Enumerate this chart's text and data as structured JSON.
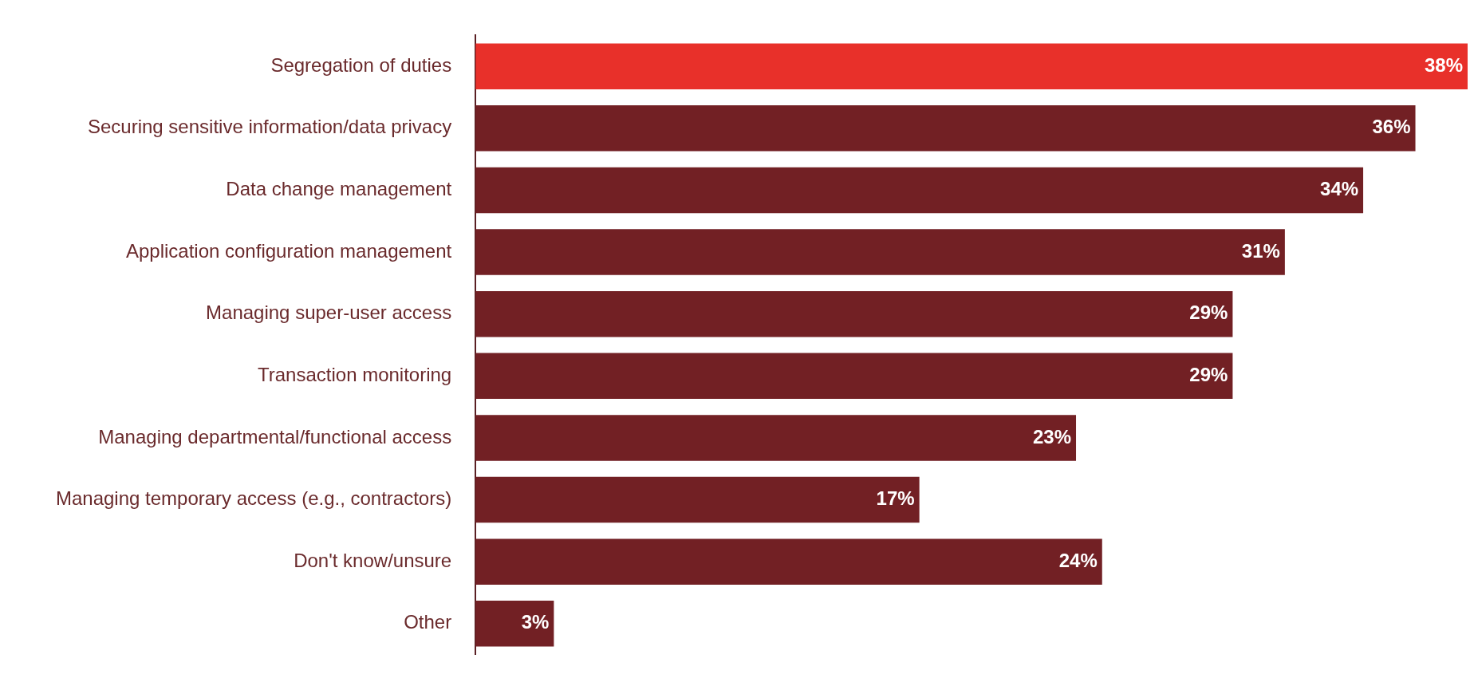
{
  "chart_data": {
    "type": "bar",
    "orientation": "horizontal",
    "categories": [
      "Segregation of duties",
      "Securing sensitive information/data privacy",
      "Data change management",
      "Application configuration management",
      "Managing super-user access",
      "Transaction monitoring",
      "Managing departmental/functional access",
      "Managing temporary access (e.g., contractors)",
      "Don't know/unsure",
      "Other"
    ],
    "values": [
      38,
      36,
      34,
      31,
      29,
      29,
      23,
      17,
      24,
      3
    ],
    "colors": [
      "#e8302a",
      "#722024",
      "#722024",
      "#722024",
      "#722024",
      "#722024",
      "#722024",
      "#722024",
      "#722024",
      "#722024"
    ],
    "value_labels": [
      "38%",
      "36%",
      "34%",
      "31%",
      "29%",
      "29%",
      "23%",
      "17%",
      "24%",
      "3%"
    ],
    "xlim": [
      0,
      38
    ],
    "tick_labels": "y"
  }
}
